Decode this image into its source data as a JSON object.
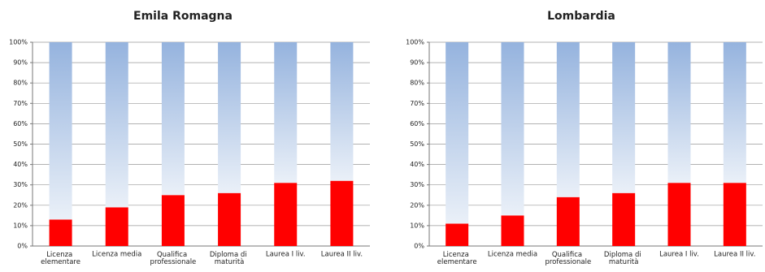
{
  "chart_data": [
    {
      "type": "bar",
      "stacked": true,
      "title": "Emila Romagna",
      "categories": [
        "Licenza elementare",
        "Licenza media",
        "Qualifica professionale",
        "Diploma di maturità",
        "Laurea I liv.",
        "Laurea II liv."
      ],
      "series": [
        {
          "color": "#ff0000",
          "values": [
            13,
            19,
            25,
            26,
            31,
            32
          ],
          "value_labels": [
            "13%",
            "19%",
            "25%",
            "26%",
            "31%",
            "32%"
          ]
        },
        {
          "color": "#95b3de",
          "values": [
            87,
            81,
            75,
            74,
            69,
            68
          ]
        }
      ],
      "ylim": [
        0,
        100
      ],
      "yticks": [
        {
          "value": 0,
          "label": "0%"
        },
        {
          "value": 10,
          "label": "10%"
        },
        {
          "value": 20,
          "label": "20%"
        },
        {
          "value": 30,
          "label": "30%"
        },
        {
          "value": 40,
          "label": "40%"
        },
        {
          "value": 50,
          "label": "50%"
        },
        {
          "value": 60,
          "label": "60%"
        },
        {
          "value": 70,
          "label": "70%"
        },
        {
          "value": 80,
          "label": "80%"
        },
        {
          "value": 90,
          "label": "90%"
        },
        {
          "value": 100,
          "label": "100%"
        }
      ],
      "grid": true
    },
    {
      "type": "bar",
      "stacked": true,
      "title": "Lombardia",
      "categories": [
        "Licenza elementare",
        "Licenza media",
        "Qualifica professionale",
        "Diploma di maturità",
        "Laurea I liv.",
        "Laurea II liv."
      ],
      "series": [
        {
          "color": "#ff0000",
          "values": [
            11,
            15,
            24,
            26,
            31,
            31
          ],
          "value_labels": [
            "11%",
            "15%",
            "24%",
            "26%",
            "31%",
            "31%"
          ]
        },
        {
          "color": "#95b3de",
          "values": [
            89,
            85,
            76,
            74,
            69,
            69
          ]
        }
      ],
      "ylim": [
        0,
        100
      ],
      "yticks": [
        {
          "value": 0,
          "label": "0%"
        },
        {
          "value": 10,
          "label": "10%"
        },
        {
          "value": 20,
          "label": "20%"
        },
        {
          "value": 30,
          "label": "30%"
        },
        {
          "value": 40,
          "label": "40%"
        },
        {
          "value": 50,
          "label": "50%"
        },
        {
          "value": 60,
          "label": "60%"
        },
        {
          "value": 70,
          "label": "70%"
        },
        {
          "value": 80,
          "label": "80%"
        },
        {
          "value": 90,
          "label": "90%"
        },
        {
          "value": 100,
          "label": "100%"
        }
      ],
      "grid": true
    }
  ]
}
